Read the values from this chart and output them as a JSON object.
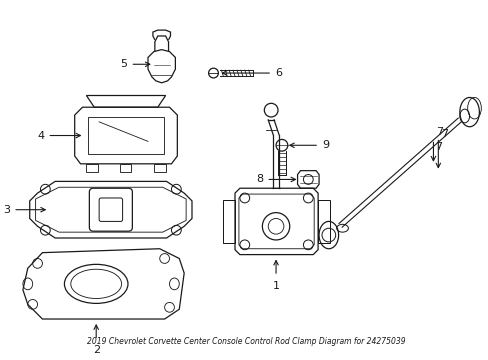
{
  "title": "2019 Chevrolet Corvette Center Console Control Rod Clamp Diagram for 24275039",
  "bg_color": "#ffffff",
  "line_color": "#1a1a1a",
  "figsize": [
    4.89,
    3.6
  ],
  "dpi": 100
}
